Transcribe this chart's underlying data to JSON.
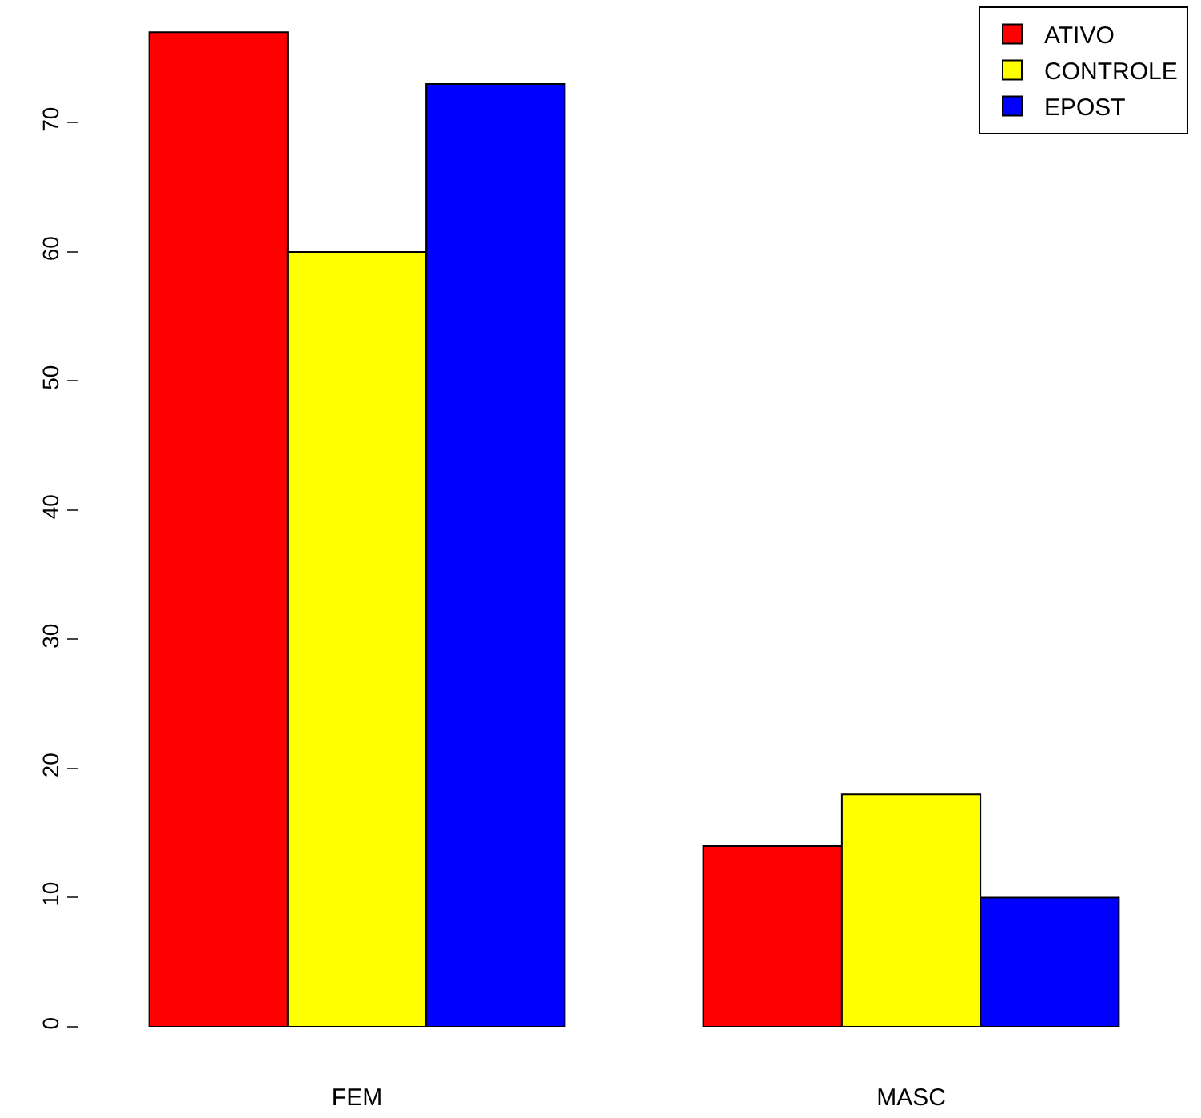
{
  "chart_data": {
    "type": "bar",
    "categories": [
      "FEM",
      "MASC"
    ],
    "series": [
      {
        "name": "ATIVO",
        "color": "#ff0000",
        "values": [
          77,
          14
        ]
      },
      {
        "name": "CONTROLE",
        "color": "#ffff00",
        "values": [
          60,
          18
        ]
      },
      {
        "name": "EPOST",
        "color": "#0000ff",
        "values": [
          73,
          10
        ]
      }
    ],
    "ylim": [
      0,
      79
    ],
    "yticks": [
      0,
      10,
      20,
      30,
      40,
      50,
      60,
      70
    ],
    "legend": "top right"
  }
}
